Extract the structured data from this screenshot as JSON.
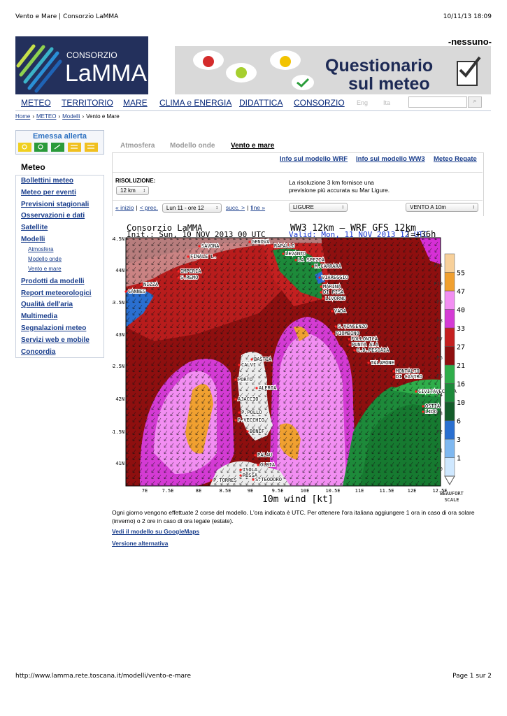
{
  "print_header": {
    "left": "Vento e Mare | Consorzio LaMMA",
    "right": "10/11/13 18:09"
  },
  "print_footer": {
    "left": "http://www.lamma.rete.toscana.it/modelli/vento-e-mare",
    "right": "Page 1 sur 2"
  },
  "logo": {
    "line1": "CONSORZIO",
    "line2": "LaMMA"
  },
  "user": "-nessuno-",
  "banner": {
    "line1": "Questionario",
    "line2": "sul meteo"
  },
  "nav": {
    "items": [
      "METEO",
      "TERRITORIO",
      "MARE",
      "CLIMA e ENERGIA",
      "DIDATTICA",
      "CONSORZIO"
    ],
    "languages": [
      "Eng",
      "Ita"
    ]
  },
  "breadcrumb": {
    "items": [
      "Home",
      "METEO",
      "Modelli",
      "Vento e Mare"
    ],
    "separator": "›"
  },
  "sidebar": {
    "alert": "Emessa allerta",
    "section": "Meteo",
    "items": [
      "Bollettini meteo",
      "Meteo per eventi",
      "Previsioni stagionali",
      "Osservazioni e dati",
      "Satellite",
      "Modelli",
      "Prodotti da modelli",
      "Report meteorologici",
      "Qualità dell'aria",
      "Multimedia",
      "Segnalazioni meteo",
      "Servizi web e mobile",
      "Concordia"
    ],
    "subitems": [
      "Atmosfera",
      "Modello onde",
      "Vento e mare"
    ]
  },
  "tabs": [
    "Atmosfera",
    "Modello onde",
    "Vento e mare"
  ],
  "info_links": [
    "Info sul modello WRF",
    "Info sul modello WW3",
    "Meteo Regate"
  ],
  "controls": {
    "resolution_label": "RISOLUZIONE:",
    "resolution": "12 km",
    "description": "La risoluzione 3 km fornisce una previsione più accurata su Mar Ligure.",
    "pager": [
      "« inizio",
      "< prec.",
      "Lun 11 - ore 12",
      "succ. >",
      "fine »"
    ],
    "pager_separator": "|",
    "area": "LIGURE",
    "field": "VENTO A 10m"
  },
  "map": {
    "title": "Consorzio LaMMA",
    "model": "WW3 12km – WRF GFS 12km",
    "init": "Init.: Sun, 10 NOV 2013 00 UTC",
    "valid": "Valid: Mon, 11 NOV 2013 12 UTC",
    "lead": "T=+36h",
    "xlabel": "10m wind [kt]",
    "lat_labels": [
      "44.5N",
      "44N",
      "43.5N",
      "43N",
      "42.5N",
      "42N",
      "41.5N",
      "41N"
    ],
    "lon_labels": [
      "7E",
      "7.5E",
      "8E",
      "8.5E",
      "9E",
      "9.5E",
      "10E",
      "10.5E",
      "11E",
      "11.5E",
      "12E",
      "12.5E"
    ],
    "places": [
      "SAVONA",
      "GENOVA",
      "RAPALLO",
      "FINALE L.",
      "LEVANTO",
      "LA SPEZIA",
      "M.CARRARA",
      "IMPERIA",
      "S.REMO",
      "NIZZA",
      "VIAREGGIO",
      "MARINA",
      "DI PISA",
      "LIVORNO",
      "CANNES",
      "VADA",
      "S.VINCENZO",
      "PIOMBINO",
      "FOLLONICA",
      "PUNTA ALA",
      "C.D.PESCAIA",
      "BASTIA",
      "CALVI",
      "TALAMONE",
      "MONTALTO",
      "DI CASTRO",
      "PORTO",
      "ALERIA",
      "CIVITAVECCHIA",
      "AJACCIO",
      "OSTIA",
      "LIDO",
      "P.POLLO",
      "P.VECCHIO",
      "BONIF",
      "PALAU",
      "OLBIA",
      "ISOLA",
      "ROSSA",
      "S.TEODORO",
      "P.TORRES"
    ],
    "beaufort": [
      "F0",
      "F1",
      "F2",
      "F3",
      "F4",
      "F5",
      "F6",
      "F7",
      "F8",
      "F9",
      "F10",
      "F11"
    ],
    "knots": [
      1,
      3,
      6,
      10,
      16,
      21,
      27,
      33,
      40,
      47,
      55
    ],
    "scale_title": [
      "BEAUFORT",
      "SCALE"
    ]
  },
  "body": {
    "text": "Ogni giorno vengono effettuate 2 corse del modello. L'ora indicata è UTC. Per ottenere l'ora italiana aggiungere 1 ora in caso di ora solare (inverno) o 2 ore in caso di ora legale (estate).",
    "links": [
      "Vedi il modello su GoogleMaps",
      "Versione alternativa"
    ]
  }
}
